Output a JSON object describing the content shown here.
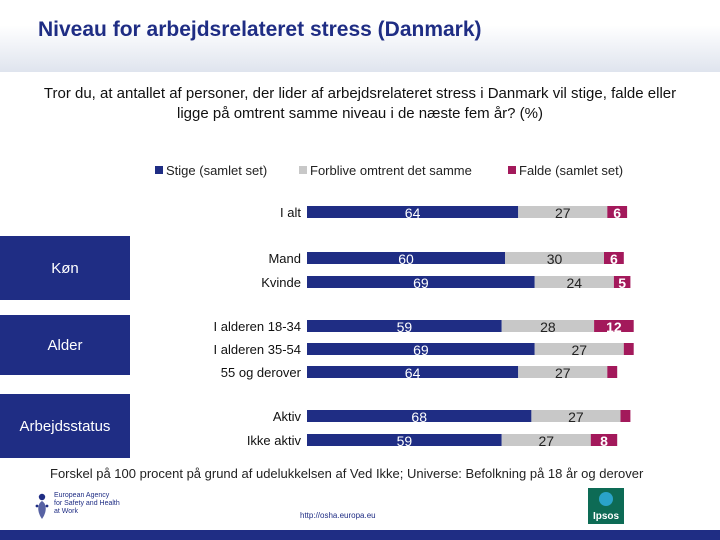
{
  "title": "Niveau for arbejdsrelateret stress (Danmark)",
  "question": "Tror du, at antallet af personer, der lider af arbejdsrelateret stress i Danmark vil stige, falde eller ligge på omtrent samme niveau i de næste fem år? (%)",
  "footnote": "Forskel på 100 procent på grund af udelukkelsen af Ved Ikke; Universe: Befolkning på 18 år og derover",
  "footer_url": "http://osha.europa.eu",
  "groups": [
    "Køn",
    "Alder",
    "Arbejdsstatus"
  ],
  "logos": {
    "osha": "European Agency\nfor Safety and Health\nat Work",
    "ipsos": "Ipsos"
  },
  "colors": {
    "stige": "#1f2d84",
    "samme": "#c8c8c8",
    "falde": "#a3195b",
    "brand": "#1f2d84"
  },
  "chart_data": {
    "type": "bar",
    "orientation": "horizontal",
    "stacked": true,
    "xlim": [
      0,
      100
    ],
    "categories": [
      "I alt",
      "Mand",
      "Kvinde",
      "I alderen 18-34",
      "I alderen 35-54",
      "55 og derover",
      "Aktiv",
      "Ikke aktiv"
    ],
    "series": [
      {
        "name": "Stige (samlet set)",
        "values": [
          64,
          60,
          69,
          59,
          69,
          64,
          68,
          59
        ],
        "labels": [
          "64",
          "60",
          "69",
          "59",
          "69",
          "64",
          "68",
          "59"
        ]
      },
      {
        "name": "Forblive omtrent det samme",
        "values": [
          27,
          30,
          24,
          28,
          27,
          27,
          27,
          27
        ],
        "labels": [
          "27",
          "30",
          "24",
          "28",
          "27",
          "27",
          "27",
          "27"
        ]
      },
      {
        "name": "Falde (samlet set)",
        "values": [
          6,
          6,
          5,
          12,
          3,
          3,
          3,
          8
        ],
        "labels": [
          "6",
          "6",
          "5",
          "12",
          "",
          "",
          "",
          "8"
        ]
      }
    ],
    "legend_position": "top"
  }
}
